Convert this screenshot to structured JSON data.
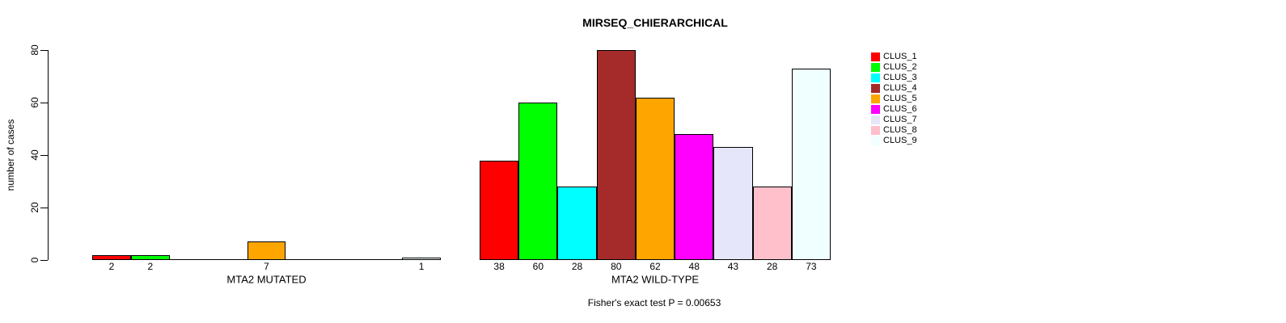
{
  "chart_data": {
    "type": "bar",
    "title": "MIRSEQ_CHIERARCHICAL",
    "ylabel": "number of cases",
    "xlabel": "",
    "ylim": [
      0,
      80
    ],
    "yticks": [
      0,
      20,
      40,
      60,
      80
    ],
    "grid": false,
    "legend_position": "right-top",
    "categories": [
      "CLUS_1",
      "CLUS_2",
      "CLUS_3",
      "CLUS_4",
      "CLUS_5",
      "CLUS_6",
      "CLUS_7",
      "CLUS_8",
      "CLUS_9"
    ],
    "colors": [
      "#FF0000",
      "#00FF00",
      "#00FFFF",
      "#A52A2A",
      "#FFA500",
      "#FF00FF",
      "#E6E6FA",
      "#FFC0CB",
      "#F0FFFF"
    ],
    "bar_border_color": "#000000",
    "groups": [
      {
        "label": "MTA2 MUTATED",
        "values": [
          2,
          2,
          0,
          0,
          7,
          0,
          0,
          0,
          1
        ]
      },
      {
        "label": "MTA2 WILD-TYPE",
        "values": [
          38,
          60,
          28,
          80,
          62,
          48,
          43,
          28,
          73
        ]
      }
    ],
    "zero_bars_unlabeled": true,
    "annotation": "Fisher's exact test P = 0.00653"
  }
}
